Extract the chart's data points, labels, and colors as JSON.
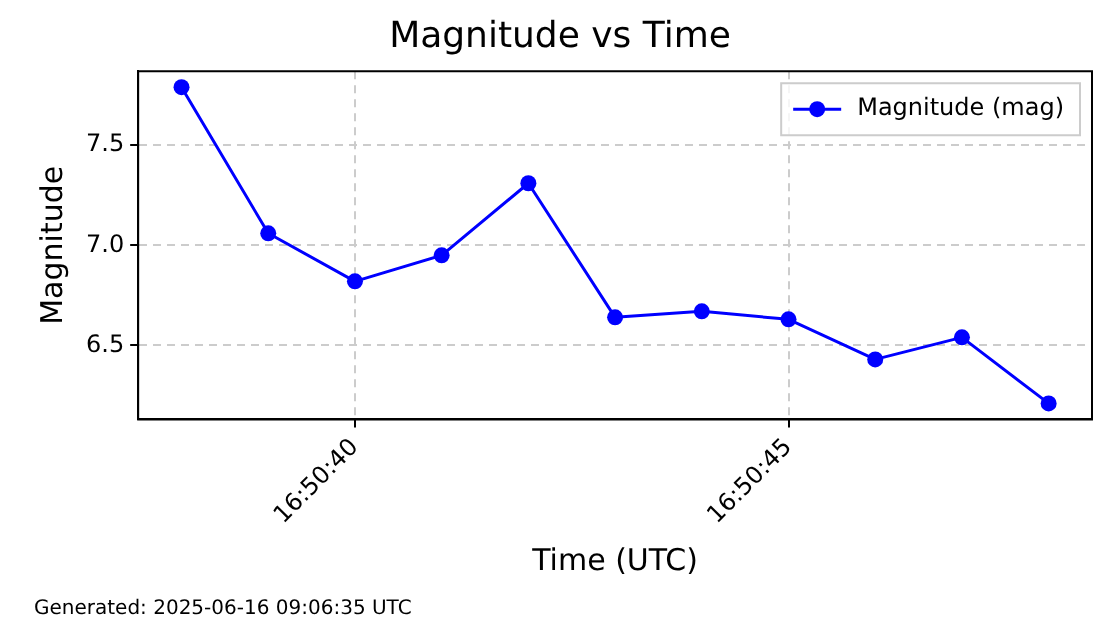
{
  "chart_data": {
    "type": "line",
    "title": "Magnitude vs Time",
    "xlabel": "Time (UTC)",
    "ylabel": "Magnitude",
    "x": [
      "2025-06-16T16:50:38",
      "2025-06-16T16:50:39",
      "2025-06-16T16:50:40",
      "2025-06-16T16:50:41",
      "2025-06-16T16:50:42",
      "2025-06-16T16:50:43",
      "2025-06-16T16:50:44",
      "2025-06-16T16:50:45",
      "2025-06-16T16:50:46",
      "2025-06-16T16:50:47",
      "2025-06-16T16:50:48"
    ],
    "series": [
      {
        "name": "Magnitude (mag)",
        "color": "#0000ff",
        "values": [
          7.79,
          7.06,
          6.82,
          6.95,
          7.31,
          6.64,
          6.67,
          6.63,
          6.43,
          6.54,
          6.21
        ]
      }
    ],
    "xlim": [
      "2025-06-16T16:50:37.5",
      "2025-06-16T16:50:48.5"
    ],
    "xticks": [
      {
        "value": "2025-06-16T16:50:40",
        "label": "16:50:40"
      },
      {
        "value": "2025-06-16T16:50:45",
        "label": "16:50:45"
      }
    ],
    "ylim": [
      6.13,
      7.87
    ],
    "yticks": [
      {
        "value": 6.5,
        "label": "6.5"
      },
      {
        "value": 7.0,
        "label": "7.0"
      },
      {
        "value": 7.5,
        "label": "7.5"
      }
    ],
    "grid": true,
    "legend": "top right",
    "marker": "circle",
    "line_style": "solid",
    "annotations": [
      "Generated: 2025-06-16 09:06:35 UTC"
    ]
  }
}
